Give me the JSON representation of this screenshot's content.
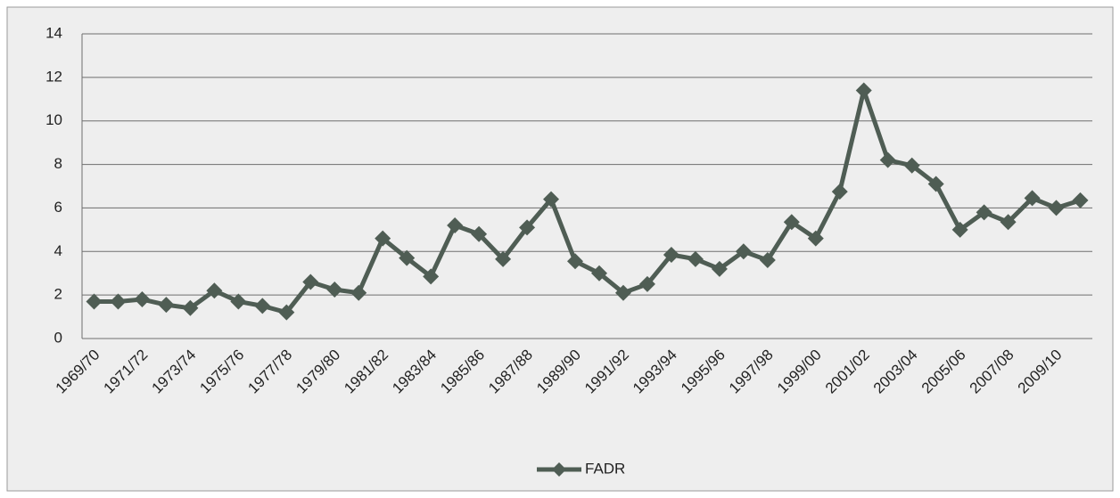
{
  "chart_data": {
    "type": "line",
    "categories": [
      "1969/70",
      null,
      "1971/72",
      null,
      "1973/74",
      null,
      "1975/76",
      null,
      "1977/78",
      null,
      "1979/80",
      null,
      "1981/82",
      null,
      "1983/84",
      null,
      "1985/86",
      null,
      "1987/88",
      null,
      "1989/90",
      null,
      "1991/92",
      null,
      "1993/94",
      null,
      "1995/96",
      null,
      "1997/98",
      null,
      "1999/00",
      null,
      "2001/02",
      null,
      "2003/04",
      null,
      "2005/06",
      null,
      "2007/08",
      null,
      "2009/10",
      null
    ],
    "series": [
      {
        "name": "FADR",
        "color": "#4f5d54",
        "values": [
          1.7,
          1.7,
          1.8,
          1.55,
          1.4,
          2.2,
          1.7,
          1.5,
          1.2,
          2.6,
          2.25,
          2.1,
          4.6,
          3.7,
          2.85,
          5.2,
          4.8,
          3.65,
          5.1,
          6.4,
          3.55,
          3.0,
          2.1,
          2.5,
          3.85,
          3.65,
          3.2,
          4.0,
          3.6,
          5.35,
          4.6,
          6.75,
          11.4,
          8.2,
          7.95,
          7.1,
          5.0,
          5.8,
          5.35,
          6.45,
          6.0,
          6.35
        ]
      }
    ],
    "ylim": [
      0,
      14
    ],
    "yticks": [
      0,
      2,
      4,
      6,
      8,
      10,
      12,
      14
    ],
    "grid": true,
    "legend": "bottom"
  }
}
